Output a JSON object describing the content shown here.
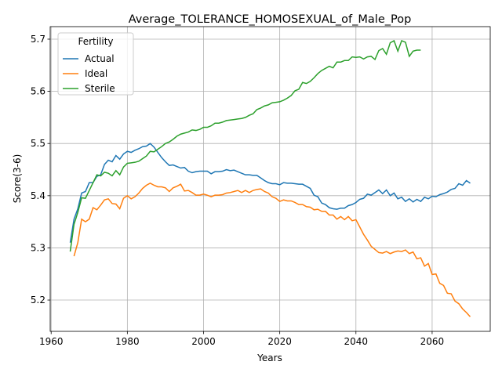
{
  "chart_data": {
    "type": "line",
    "title": "Average_TOLERANCE_HOMOSEXUAL_of_Male_Pop",
    "x_label": "Years",
    "y_label": "Score(3-6)",
    "xlim": [
      1959.75,
      2075.25
    ],
    "ylim": [
      5.14,
      5.724
    ],
    "xticks": [
      1960,
      1980,
      2000,
      2020,
      2040,
      2060
    ],
    "yticks": [
      5.2,
      5.3,
      5.4,
      5.5,
      5.6,
      5.7
    ],
    "grid": true,
    "legend_title": "Fertility",
    "legend_position": "upper-left",
    "series": [
      {
        "name": "Actual",
        "color": "#1f77b4",
        "x": [
          1965,
          1966,
          1967,
          1968,
          1969,
          1970,
          1971,
          1972,
          1973,
          1974,
          1975,
          1976,
          1977,
          1978,
          1979,
          1980,
          1981,
          1982,
          1983,
          1984,
          1985,
          1986,
          1987,
          1988,
          1989,
          1990,
          1991,
          1992,
          1993,
          1994,
          1995,
          1996,
          1997,
          1998,
          1999,
          2000,
          2001,
          2002,
          2003,
          2004,
          2005,
          2006,
          2007,
          2008,
          2009,
          2010,
          2011,
          2012,
          2013,
          2014,
          2015,
          2016,
          2017,
          2018,
          2019,
          2020,
          2021,
          2022,
          2023,
          2024,
          2025,
          2026,
          2027,
          2028,
          2029,
          2030,
          2031,
          2032,
          2033,
          2034,
          2035,
          2036,
          2037,
          2038,
          2039,
          2040,
          2041,
          2042,
          2043,
          2044,
          2045,
          2046,
          2047,
          2048,
          2049,
          2050,
          2051,
          2052,
          2053,
          2054,
          2055,
          2056,
          2057,
          2058,
          2059,
          2060,
          2061,
          2062,
          2063,
          2064,
          2065,
          2066,
          2067,
          2068,
          2069,
          2070
        ],
        "values": [
          5.31,
          5.355,
          5.375,
          5.405,
          5.408,
          5.425,
          5.425,
          5.437,
          5.44,
          5.46,
          5.468,
          5.465,
          5.477,
          5.47,
          5.48,
          5.485,
          5.483,
          5.487,
          5.49,
          5.494,
          5.495,
          5.5,
          5.493,
          5.483,
          5.473,
          5.465,
          5.458,
          5.459,
          5.456,
          5.453,
          5.454,
          5.447,
          5.444,
          5.446,
          5.447,
          5.447,
          5.447,
          5.442,
          5.446,
          5.446,
          5.447,
          5.45,
          5.448,
          5.449,
          5.446,
          5.443,
          5.44,
          5.44,
          5.439,
          5.439,
          5.434,
          5.429,
          5.425,
          5.423,
          5.423,
          5.421,
          5.425,
          5.424,
          5.424,
          5.423,
          5.422,
          5.422,
          5.418,
          5.414,
          5.401,
          5.398,
          5.386,
          5.383,
          5.377,
          5.375,
          5.374,
          5.376,
          5.376,
          5.381,
          5.383,
          5.387,
          5.393,
          5.395,
          5.403,
          5.401,
          5.406,
          5.411,
          5.404,
          5.411,
          5.4,
          5.405,
          5.394,
          5.397,
          5.389,
          5.394,
          5.388,
          5.393,
          5.389,
          5.397,
          5.394,
          5.399,
          5.398,
          5.402,
          5.404,
          5.407,
          5.412,
          5.414,
          5.423,
          5.42,
          5.429,
          5.424
        ]
      },
      {
        "name": "Ideal",
        "color": "#ff7f0e",
        "x": [
          1966,
          1967,
          1968,
          1969,
          1970,
          1971,
          1972,
          1973,
          1974,
          1975,
          1976,
          1977,
          1978,
          1979,
          1980,
          1981,
          1982,
          1983,
          1984,
          1985,
          1986,
          1987,
          1988,
          1989,
          1990,
          1991,
          1992,
          1993,
          1994,
          1995,
          1996,
          1997,
          1998,
          1999,
          2000,
          2001,
          2002,
          2003,
          2004,
          2005,
          2006,
          2007,
          2008,
          2009,
          2010,
          2011,
          2012,
          2013,
          2014,
          2015,
          2016,
          2017,
          2018,
          2019,
          2020,
          2021,
          2022,
          2023,
          2024,
          2025,
          2026,
          2027,
          2028,
          2029,
          2030,
          2031,
          2032,
          2033,
          2034,
          2035,
          2036,
          2037,
          2038,
          2039,
          2040,
          2041,
          2042,
          2043,
          2044,
          2045,
          2046,
          2047,
          2048,
          2049,
          2050,
          2051,
          2052,
          2053,
          2054,
          2055,
          2056,
          2057,
          2058,
          2059,
          2060,
          2061,
          2062,
          2063,
          2064,
          2065,
          2066,
          2067,
          2068,
          2069,
          2070
        ],
        "values": [
          5.284,
          5.31,
          5.355,
          5.35,
          5.355,
          5.377,
          5.373,
          5.382,
          5.392,
          5.394,
          5.385,
          5.384,
          5.375,
          5.395,
          5.4,
          5.394,
          5.398,
          5.405,
          5.414,
          5.42,
          5.424,
          5.42,
          5.417,
          5.417,
          5.415,
          5.408,
          5.415,
          5.418,
          5.422,
          5.409,
          5.41,
          5.406,
          5.401,
          5.401,
          5.403,
          5.401,
          5.398,
          5.401,
          5.401,
          5.402,
          5.405,
          5.406,
          5.408,
          5.41,
          5.406,
          5.41,
          5.406,
          5.41,
          5.412,
          5.413,
          5.408,
          5.405,
          5.398,
          5.395,
          5.389,
          5.392,
          5.39,
          5.39,
          5.387,
          5.383,
          5.383,
          5.379,
          5.378,
          5.373,
          5.374,
          5.37,
          5.37,
          5.363,
          5.363,
          5.355,
          5.36,
          5.354,
          5.36,
          5.352,
          5.354,
          5.34,
          5.326,
          5.315,
          5.303,
          5.297,
          5.291,
          5.29,
          5.293,
          5.289,
          5.292,
          5.294,
          5.293,
          5.296,
          5.289,
          5.292,
          5.279,
          5.281,
          5.265,
          5.27,
          5.249,
          5.25,
          5.232,
          5.228,
          5.213,
          5.212,
          5.198,
          5.193,
          5.183,
          5.176,
          5.168
        ]
      },
      {
        "name": "Sterile",
        "color": "#2ca02c",
        "x": [
          1965,
          1966,
          1967,
          1968,
          1969,
          1970,
          1971,
          1972,
          1973,
          1974,
          1975,
          1976,
          1977,
          1978,
          1979,
          1980,
          1981,
          1982,
          1983,
          1984,
          1985,
          1986,
          1987,
          1988,
          1989,
          1990,
          1991,
          1992,
          1993,
          1994,
          1995,
          1996,
          1997,
          1998,
          1999,
          2000,
          2001,
          2002,
          2003,
          2004,
          2005,
          2006,
          2007,
          2008,
          2009,
          2010,
          2011,
          2012,
          2013,
          2014,
          2015,
          2016,
          2017,
          2018,
          2019,
          2020,
          2021,
          2022,
          2023,
          2024,
          2025,
          2026,
          2027,
          2028,
          2029,
          2030,
          2031,
          2032,
          2033,
          2034,
          2035,
          2036,
          2037,
          2038,
          2039,
          2040,
          2041,
          2042,
          2043,
          2044,
          2045,
          2046,
          2047,
          2048,
          2049,
          2050,
          2051,
          2052,
          2053,
          2054,
          2055,
          2056,
          2057
        ],
        "values": [
          5.293,
          5.345,
          5.368,
          5.396,
          5.395,
          5.41,
          5.425,
          5.44,
          5.438,
          5.445,
          5.443,
          5.438,
          5.448,
          5.44,
          5.455,
          5.462,
          5.463,
          5.464,
          5.466,
          5.471,
          5.476,
          5.485,
          5.484,
          5.489,
          5.494,
          5.5,
          5.503,
          5.508,
          5.514,
          5.518,
          5.52,
          5.522,
          5.526,
          5.525,
          5.527,
          5.531,
          5.531,
          5.534,
          5.539,
          5.539,
          5.541,
          5.544,
          5.545,
          5.546,
          5.547,
          5.548,
          5.55,
          5.554,
          5.557,
          5.565,
          5.568,
          5.572,
          5.574,
          5.578,
          5.579,
          5.58,
          5.583,
          5.587,
          5.592,
          5.601,
          5.604,
          5.617,
          5.615,
          5.619,
          5.626,
          5.634,
          5.64,
          5.644,
          5.648,
          5.645,
          5.656,
          5.656,
          5.659,
          5.659,
          5.666,
          5.665,
          5.666,
          5.662,
          5.666,
          5.667,
          5.661,
          5.678,
          5.682,
          5.671,
          5.693,
          5.697,
          5.677,
          5.697,
          5.694,
          5.667,
          5.677,
          5.679,
          5.679
        ]
      }
    ]
  }
}
